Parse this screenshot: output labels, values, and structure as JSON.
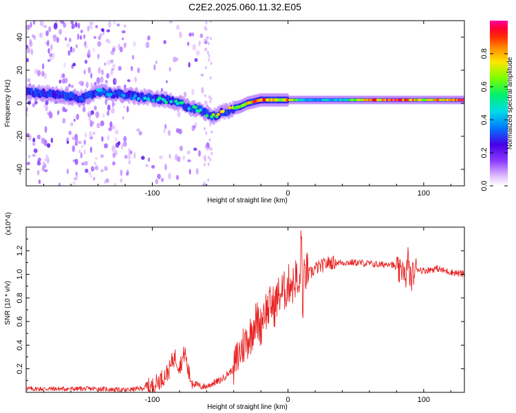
{
  "title": "C2E2.2025.060.11.32.E05",
  "colors": {
    "snr_line": "#e82020",
    "ridge_low": "#6a00ff",
    "ridge_mid": "#00e0c0",
    "ridge_high": "#ff1010"
  },
  "chart_data": [
    {
      "type": "heatmap",
      "xlabel": "Height of straight line (km)",
      "ylabel": "Frequency (Hz)",
      "xlim": [
        -193,
        130
      ],
      "ylim": [
        -50,
        50
      ],
      "xticks": [
        -100,
        0,
        100
      ],
      "xtick_labels": [
        "-100",
        "0",
        "100"
      ],
      "yticks": [
        -40,
        -20,
        0,
        20,
        40
      ],
      "ytick_labels": [
        "-40",
        "-20",
        "0",
        "20",
        "40"
      ],
      "colorbar": {
        "label": "Normalized spectral amplitude",
        "range": [
          0,
          1
        ],
        "ticks": [
          0.0,
          0.2,
          0.4,
          0.6,
          0.8
        ],
        "tick_labels": [
          "0.0",
          "0.2",
          "0.4",
          "0.6",
          "0.8"
        ],
        "colormap": "rainbow (white-violet-blue-cyan-green-yellow-red-magenta)"
      },
      "ridge": {
        "x": [
          -193,
          -180,
          -170,
          -160,
          -150,
          -140,
          -130,
          -120,
          -110,
          -100,
          -90,
          -80,
          -75,
          -70,
          -65,
          -60,
          -55,
          -50,
          -45,
          -40,
          -35,
          -30,
          -25,
          -20,
          -15,
          -10,
          -5,
          0,
          10,
          20,
          40,
          60,
          80,
          100,
          130
        ],
        "freq": [
          7,
          6,
          5,
          4,
          3,
          7,
          6,
          5,
          4,
          3,
          2,
          0,
          -2,
          -3,
          -4,
          -6,
          -8,
          -6,
          -5,
          -3,
          -2,
          0,
          1,
          2,
          2,
          2,
          2,
          2,
          2,
          2,
          2,
          2,
          2,
          2,
          2
        ],
        "amplitude": [
          0.3,
          0.3,
          0.3,
          0.35,
          0.4,
          0.45,
          0.4,
          0.45,
          0.45,
          0.5,
          0.55,
          0.55,
          0.5,
          0.55,
          0.6,
          0.55,
          0.65,
          0.9,
          0.8,
          0.7,
          0.75,
          0.8,
          0.9,
          1.0,
          0.95,
          0.9,
          0.7,
          0.9,
          0.5,
          0.45,
          0.5,
          0.9,
          1.0,
          0.8,
          1.0
        ]
      }
    },
    {
      "type": "line",
      "xlabel": "Height of straight line (km)",
      "ylabel": "SNR (10 * v/v)",
      "y_multiplier": "(x10^4)",
      "xlim": [
        -193,
        130
      ],
      "ylim": [
        0,
        1.4
      ],
      "xticks": [
        -100,
        0,
        100
      ],
      "xtick_labels": [
        "-100",
        "0",
        "100"
      ],
      "yticks": [
        0.2,
        0.4,
        0.6,
        0.8,
        1.0,
        1.2
      ],
      "ytick_labels": [
        "0.2",
        "0.4",
        "0.6",
        "0.8",
        "1.0",
        "1.2"
      ],
      "series": [
        {
          "x": [
            -193,
            -180,
            -160,
            -140,
            -120,
            -110,
            -100,
            -95,
            -90,
            -87,
            -85,
            -83,
            -80,
            -78,
            -76,
            -74,
            -72,
            -70,
            -65,
            -60,
            -55,
            -50,
            -45,
            -40,
            -37,
            -35,
            -33,
            -30,
            -27,
            -25,
            -22,
            -20,
            -18,
            -15,
            -12,
            -10,
            -8,
            -5,
            -3,
            0,
            2,
            4,
            6,
            8,
            10,
            11,
            12,
            14,
            16,
            20,
            25,
            30,
            35,
            40,
            50,
            60,
            70,
            75,
            80,
            83,
            85,
            87,
            88,
            90,
            92,
            95,
            100,
            105,
            110,
            115,
            120,
            125,
            130
          ],
          "y": [
            0.03,
            0.03,
            0.03,
            0.03,
            0.02,
            0.03,
            0.05,
            0.1,
            0.15,
            0.2,
            0.28,
            0.3,
            0.22,
            0.27,
            0.35,
            0.2,
            0.12,
            0.08,
            0.05,
            0.05,
            0.08,
            0.1,
            0.15,
            0.2,
            0.3,
            0.35,
            0.4,
            0.45,
            0.5,
            0.6,
            0.6,
            0.55,
            0.7,
            0.7,
            0.75,
            0.72,
            0.8,
            0.85,
            0.85,
            0.9,
            0.95,
            0.9,
            1.0,
            0.8,
            1.35,
            0.6,
            1.0,
            1.02,
            1.0,
            1.05,
            1.07,
            1.1,
            1.1,
            1.1,
            1.1,
            1.09,
            1.08,
            1.1,
            1.05,
            1.0,
            1.1,
            0.85,
            1.2,
            0.95,
            1.0,
            1.05,
            1.03,
            1.04,
            1.05,
            1.03,
            1.02,
            1.01,
            1.0
          ]
        }
      ]
    }
  ]
}
